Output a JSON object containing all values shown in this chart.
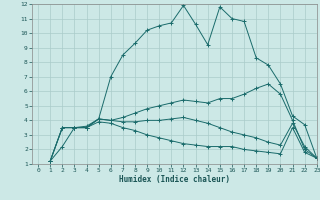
{
  "xlabel": "Humidex (Indice chaleur)",
  "ylabel": "",
  "background_color": "#cce8e6",
  "grid_color": "#aaccca",
  "line_color": "#1a6b6b",
  "xlim": [
    -0.5,
    23
  ],
  "ylim": [
    1,
    12
  ],
  "xticks": [
    0,
    1,
    2,
    3,
    4,
    5,
    6,
    7,
    8,
    9,
    10,
    11,
    12,
    13,
    14,
    15,
    16,
    17,
    18,
    19,
    20,
    21,
    22,
    23
  ],
  "yticks": [
    1,
    2,
    3,
    4,
    5,
    6,
    7,
    8,
    9,
    10,
    11,
    12
  ],
  "lines": [
    {
      "x": [
        1,
        2,
        3,
        4,
        5,
        6,
        7,
        8,
        9,
        10,
        11,
        12,
        13,
        14,
        15,
        16,
        17,
        18,
        19,
        20,
        21,
        22,
        23
      ],
      "y": [
        1.2,
        2.2,
        3.5,
        3.5,
        4.1,
        7.0,
        8.5,
        9.3,
        10.2,
        10.5,
        10.7,
        11.9,
        10.6,
        9.2,
        11.8,
        11.0,
        10.8,
        8.3,
        7.8,
        6.5,
        4.3,
        3.7,
        1.4
      ]
    },
    {
      "x": [
        1,
        2,
        3,
        4,
        5,
        6,
        7,
        8,
        9,
        10,
        11,
        12,
        13,
        14,
        15,
        16,
        17,
        18,
        19,
        20,
        21,
        22,
        23
      ],
      "y": [
        1.2,
        3.5,
        3.5,
        3.5,
        4.1,
        4.0,
        4.2,
        4.5,
        4.8,
        5.0,
        5.2,
        5.4,
        5.3,
        5.2,
        5.5,
        5.5,
        5.8,
        6.2,
        6.5,
        5.8,
        4.0,
        2.0,
        1.4
      ]
    },
    {
      "x": [
        1,
        2,
        3,
        4,
        5,
        6,
        7,
        8,
        9,
        10,
        11,
        12,
        13,
        14,
        15,
        16,
        17,
        18,
        19,
        20,
        21,
        22,
        23
      ],
      "y": [
        1.2,
        3.5,
        3.5,
        3.6,
        4.1,
        4.0,
        3.9,
        3.9,
        4.0,
        4.0,
        4.1,
        4.2,
        4.0,
        3.8,
        3.5,
        3.2,
        3.0,
        2.8,
        2.5,
        2.3,
        3.8,
        2.2,
        1.4
      ]
    },
    {
      "x": [
        1,
        2,
        3,
        4,
        5,
        6,
        7,
        8,
        9,
        10,
        11,
        12,
        13,
        14,
        15,
        16,
        17,
        18,
        19,
        20,
        21,
        22,
        23
      ],
      "y": [
        1.2,
        3.5,
        3.5,
        3.5,
        3.9,
        3.8,
        3.5,
        3.3,
        3.0,
        2.8,
        2.6,
        2.4,
        2.3,
        2.2,
        2.2,
        2.2,
        2.0,
        1.9,
        1.8,
        1.7,
        3.5,
        1.8,
        1.4
      ]
    }
  ]
}
